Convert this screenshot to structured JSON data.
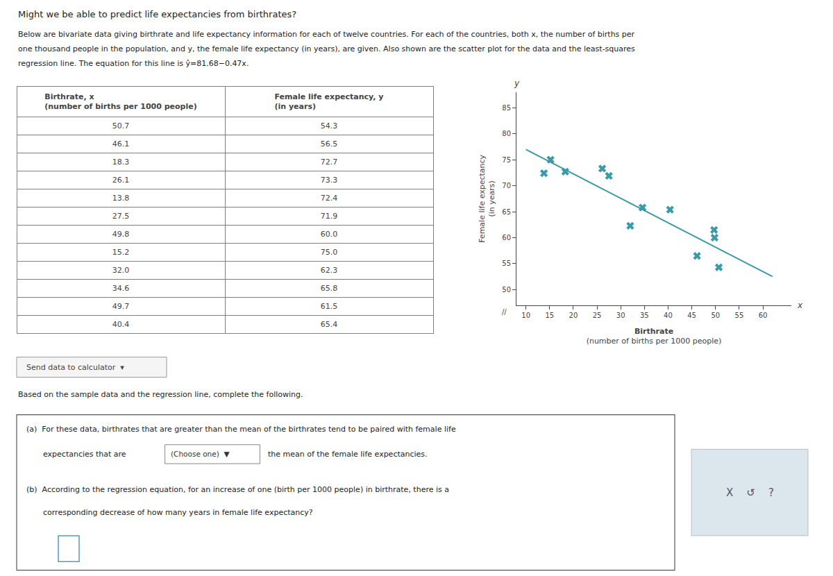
{
  "chart_data": {
    "type": "scatter",
    "title": "Might we be able to predict life expectancies from birthrates?",
    "subtitle": [
      "Below are bivariate data giving birthrate and life expectancy information for each of twelve countries. For each of the countries, both x, the number of births per",
      "one thousand people in the population, and y, the female life expectancy (in years), are given. Also shown are the scatter plot for the data and the least-squares",
      "regression line. The equation for this line is ŷ=81.68−0.47x."
    ],
    "table_headers": [
      [
        "Birthrate, x",
        "(number of births per 1000 people)"
      ],
      [
        "Female life expectancy, y",
        "(in years)"
      ]
    ],
    "xlabel": [
      "Birthrate",
      "(number of births per 1000 people)"
    ],
    "ylabel": [
      "Female life expectancy",
      "(in years)"
    ],
    "series": [
      {
        "type": "scatter",
        "marker": "x",
        "color": "#3a9aaa",
        "x": [
          50.7,
          46.1,
          18.3,
          26.1,
          13.8,
          27.5,
          49.8,
          15.2,
          32.0,
          34.6,
          49.7,
          40.4
        ],
        "values": [
          54.3,
          56.5,
          72.7,
          73.3,
          72.4,
          71.9,
          60.0,
          75.0,
          62.3,
          65.8,
          61.5,
          65.4
        ]
      },
      {
        "type": "line",
        "line_style": "solid",
        "color": "#3a9aaa",
        "x": [
          10.0,
          62.0
        ],
        "values": [
          76.98,
          52.54
        ]
      }
    ],
    "xlim": [
      8,
      66
    ],
    "ylim": [
      47,
      88
    ],
    "xticks": [
      10,
      15,
      20,
      25,
      30,
      35,
      40,
      45,
      50,
      55,
      60
    ],
    "yticks": [
      50,
      55,
      60,
      65,
      70,
      75,
      80,
      85
    ],
    "grid": false,
    "annotations": [
      "x",
      "y",
      "//",
      "Send data to calculator  ▾",
      "Based on the sample data and the regression line, complete the following.",
      "(a)  For these data, birthrates that are greater than the mean of the birthrates tend to be paired with female life",
      "expectancies that are",
      "(Choose one)  ▼",
      "the mean of the female life expectancies.",
      "(b)  According to the regression equation, for an increase of one (birth per 1000 people) in birthrate, there is a",
      "corresponding decrease of how many years in female life expectancy?",
      "X    ↺    ?"
    ]
  }
}
